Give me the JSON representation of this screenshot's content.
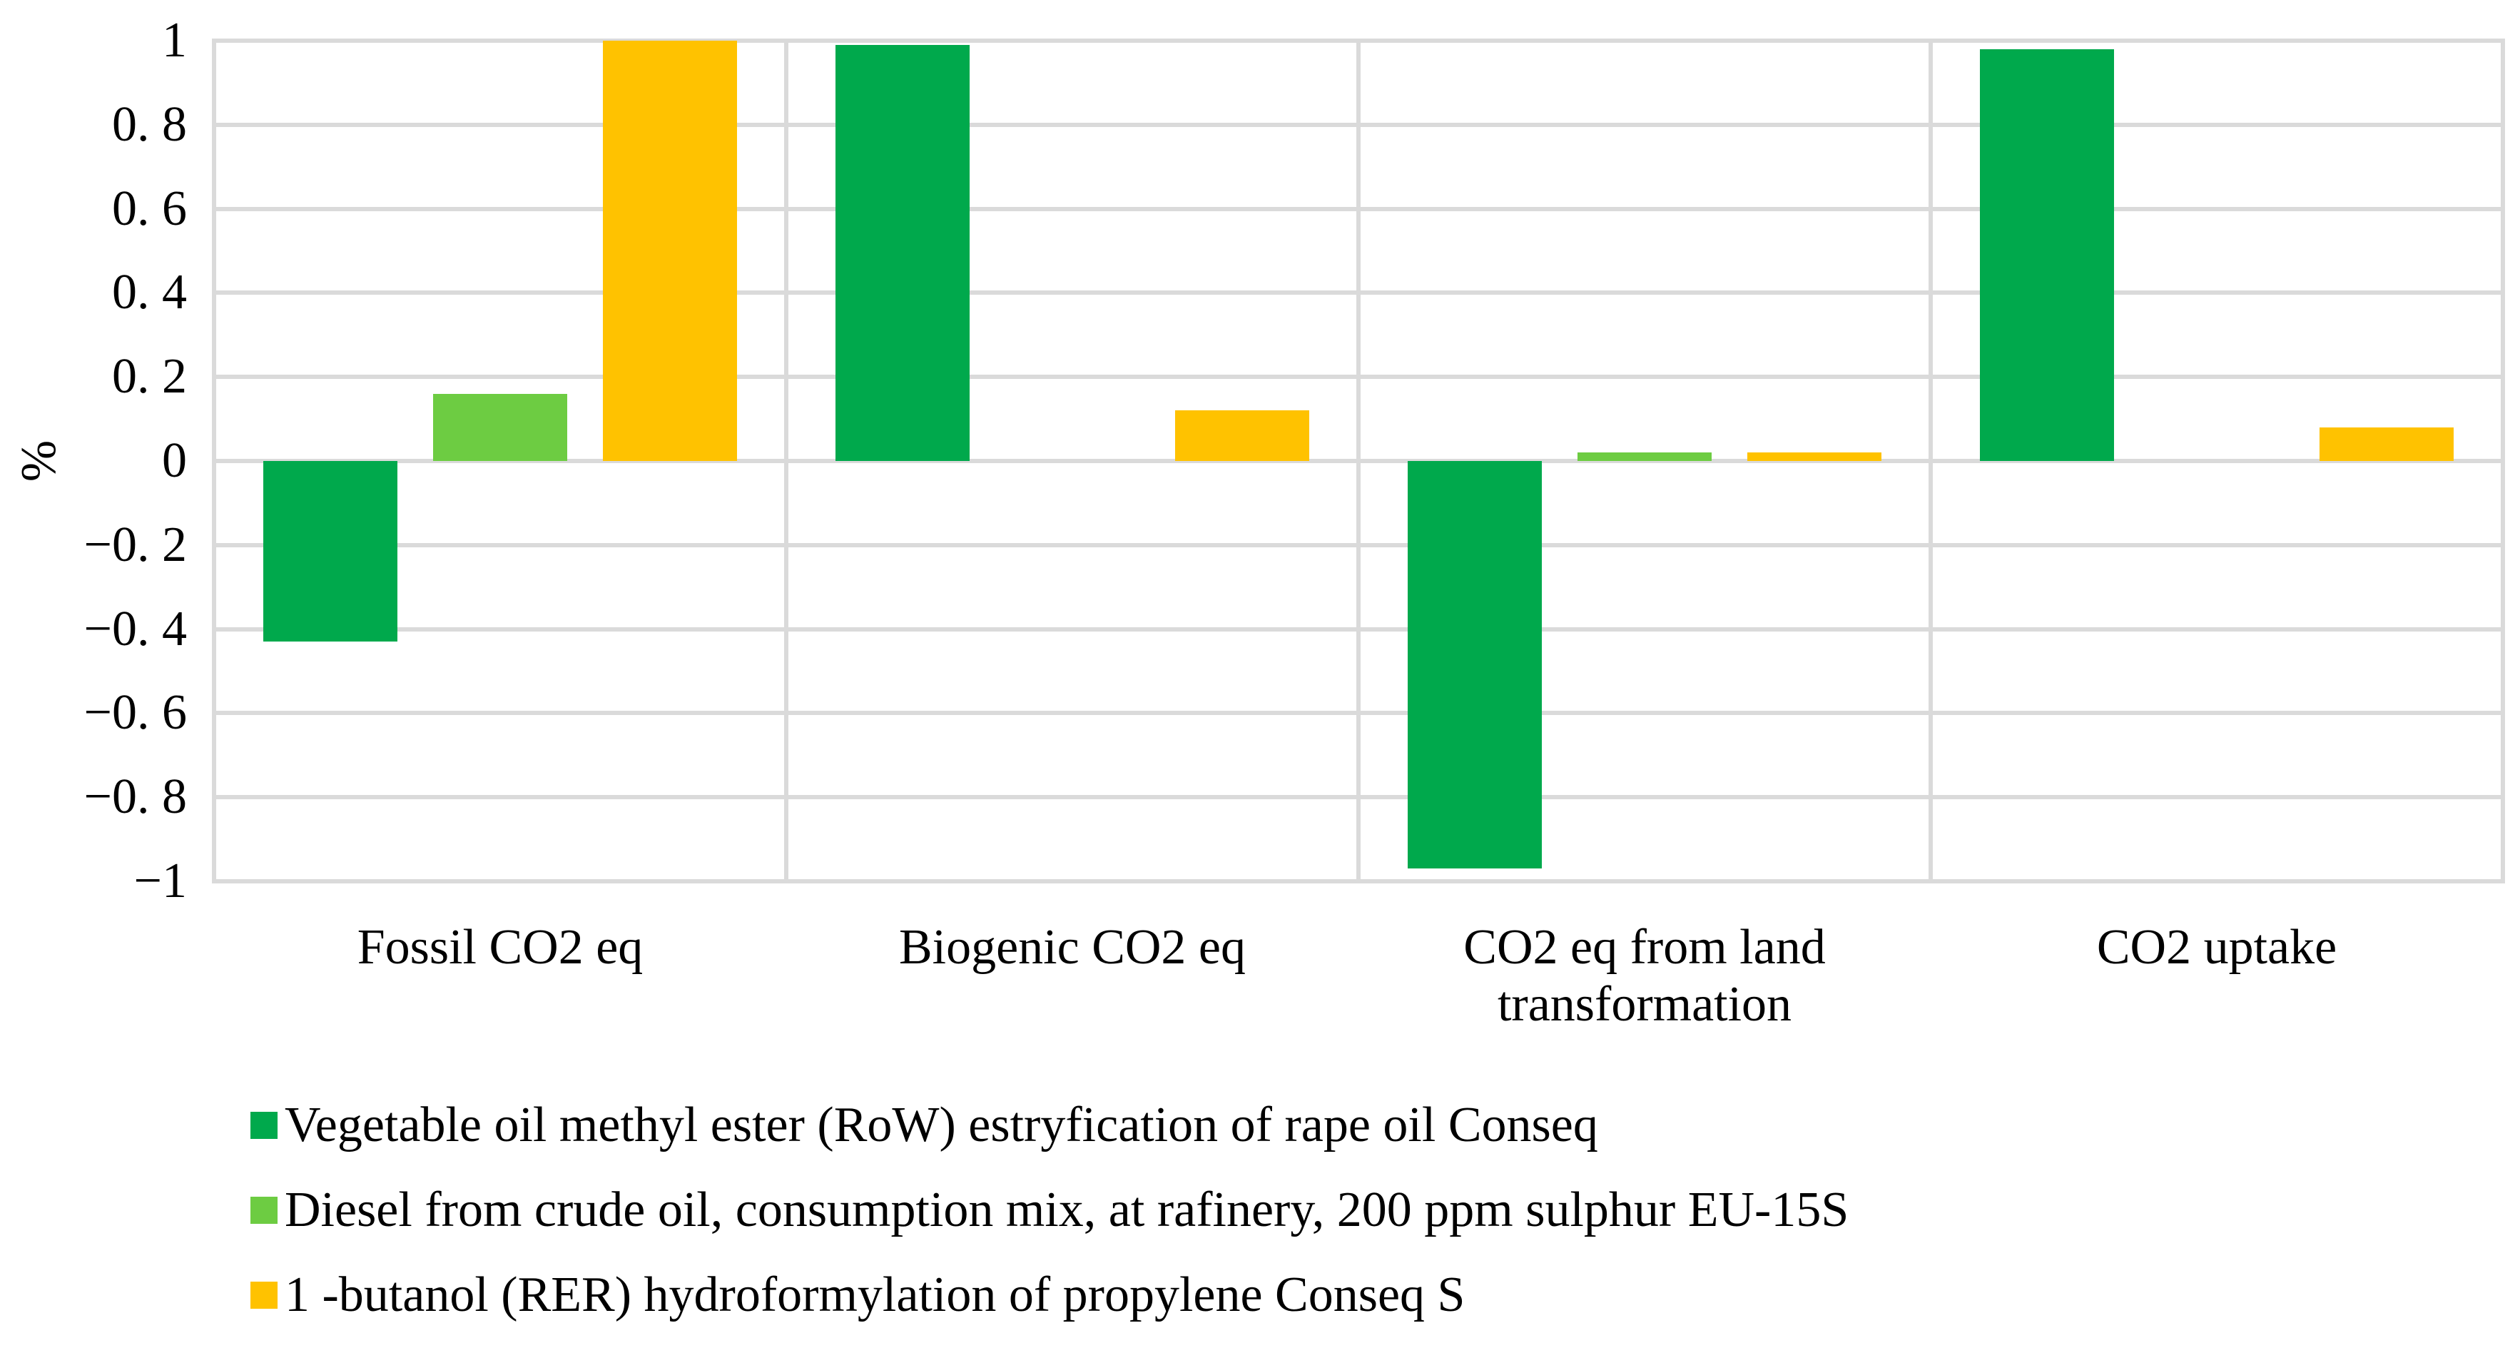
{
  "page": {
    "background": "#FFFFFF"
  },
  "chart_data": {
    "type": "bar",
    "title": "",
    "ylabel": "%",
    "xlabel": "",
    "ylim": [
      -1,
      1
    ],
    "ytick_step": 0.2,
    "ytick_labels": [
      "1",
      "0. 8",
      "0. 6",
      "0. 4",
      "0. 2",
      "0",
      "−0. 2",
      "−0. 4",
      "−0. 6",
      "−0. 8",
      "−1"
    ],
    "grid": true,
    "gridline_color": "#DADADA",
    "axis_text_color": "#000000",
    "legend_position": "bottom-left",
    "categories": [
      "Fossil CO2 eq",
      "Biogenic CO2 eq",
      "CO2 eq from land transformation",
      "CO2 uptake"
    ],
    "series": [
      {
        "name": "Vegetable oil methyl ester (RoW) estryfication of rape oil Conseq",
        "color": "#00A94C",
        "values": [
          -0.43,
          0.99,
          -0.97,
          0.98
        ]
      },
      {
        "name": "Diesel from crude oil, consumption mix, at rafinery, 200 ppm sulphur EU-15S",
        "color": "#6DCC42",
        "values": [
          0.16,
          0,
          0.02,
          0
        ]
      },
      {
        "name": "1 -butanol (RER) hydroformylation of propylene Conseq S",
        "color": "#FFC200",
        "values": [
          1,
          0.12,
          0.02,
          0.08
        ]
      }
    ]
  }
}
